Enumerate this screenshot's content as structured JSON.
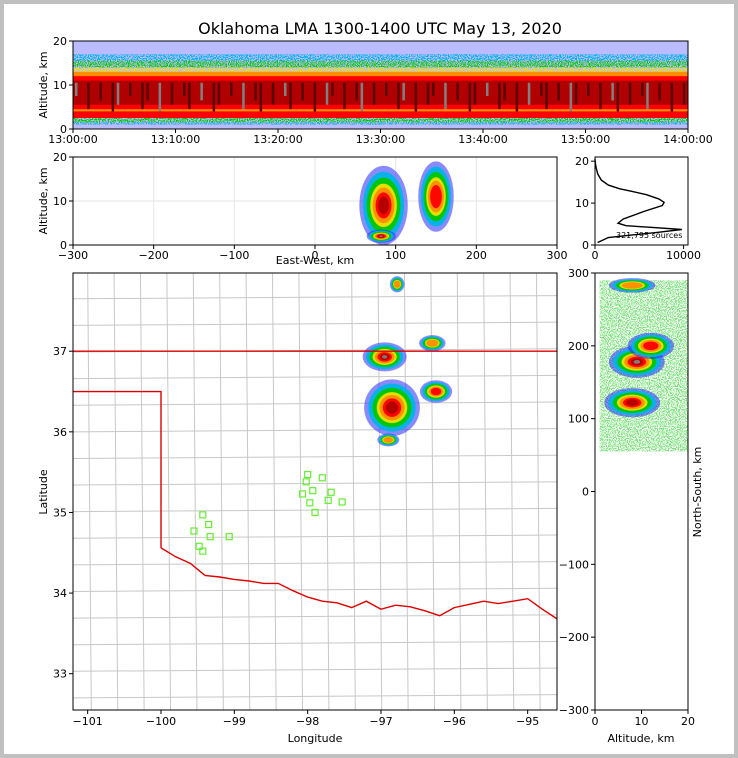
{
  "chart_data": [
    {
      "type": "heatmap",
      "panel": "altitude-vs-time",
      "title": "Oklahoma LMA 1300-1400 UTC May 13, 2020",
      "xlabel": "",
      "ylabel": "Altitude, km",
      "xticks": [
        "13:00:00",
        "13:10:00",
        "13:20:00",
        "13:30:00",
        "13:40:00",
        "13:50:00",
        "14:00:00"
      ],
      "yticks": [
        "0",
        "10",
        "20"
      ],
      "ylim": [
        0,
        20
      ],
      "density_band_km": [
        2,
        13
      ],
      "dense_core_km": [
        6,
        11
      ]
    },
    {
      "type": "heatmap",
      "panel": "altitude-vs-east-west",
      "xlabel": "East-West, km",
      "ylabel": "Altitude, km",
      "xticks": [
        "−300",
        "−200",
        "−100",
        "0",
        "100",
        "200",
        "300"
      ],
      "yticks": [
        "0",
        "10",
        "20"
      ],
      "xlim": [
        -300,
        300
      ],
      "ylim": [
        0,
        20
      ],
      "grid": true,
      "cells": [
        {
          "x": 85,
          "y": 9,
          "rx": 30,
          "ry": 9,
          "level": 3
        },
        {
          "x": 150,
          "y": 11,
          "rx": 22,
          "ry": 8,
          "level": 2
        },
        {
          "x": 82,
          "y": 2,
          "rx": 18,
          "ry": 1.5,
          "level": 4
        }
      ]
    },
    {
      "type": "line",
      "panel": "altitude-histogram",
      "xlabel": "",
      "xticks": [
        "0",
        "10000"
      ],
      "yticks": [
        "0",
        "10",
        "20"
      ],
      "xlim": [
        0,
        10500
      ],
      "ylim": [
        0,
        21
      ],
      "annotation": "321,795 sources",
      "series": [
        {
          "x": [
            0,
            40,
            120,
            300,
            700,
            1500,
            2800,
            4200,
            5800,
            7200,
            7800,
            7600,
            5500,
            3200,
            2600,
            3500,
            6500,
            9800,
            7000,
            1500,
            300
          ],
          "y": [
            20.5,
            19.5,
            18.5,
            17.0,
            15.5,
            14.3,
            13.4,
            12.8,
            12.0,
            11.0,
            10.2,
            9.4,
            8.0,
            6.2,
            5.2,
            4.6,
            4.2,
            3.7,
            3.0,
            1.8,
            0.6
          ]
        }
      ]
    },
    {
      "type": "heatmap",
      "panel": "plan-view",
      "xlabel": "Longitude",
      "ylabel": "Latitude",
      "xticks": [
        "−101",
        "−100",
        "−99",
        "−98",
        "−97",
        "−96",
        "−95"
      ],
      "yticks": [
        "33",
        "34",
        "35",
        "36",
        "37"
      ],
      "xlim": [
        -101.2,
        -94.6
      ],
      "ylim": [
        32.55,
        37.97
      ],
      "state_border_lat": 37.0,
      "panhandle_lat": 36.5,
      "panhandle_lon": -100.0,
      "red_river": [
        [
          -100.0,
          34.56
        ],
        [
          -99.8,
          34.45
        ],
        [
          -99.6,
          34.37
        ],
        [
          -99.4,
          34.22
        ],
        [
          -99.2,
          34.2
        ],
        [
          -99.0,
          34.17
        ],
        [
          -98.8,
          34.15
        ],
        [
          -98.6,
          34.12
        ],
        [
          -98.4,
          34.12
        ],
        [
          -98.2,
          34.03
        ],
        [
          -98.0,
          33.95
        ],
        [
          -97.8,
          33.9
        ],
        [
          -97.6,
          33.88
        ],
        [
          -97.4,
          33.82
        ],
        [
          -97.2,
          33.9
        ],
        [
          -97.0,
          33.8
        ],
        [
          -96.8,
          33.85
        ],
        [
          -96.6,
          33.83
        ],
        [
          -96.4,
          33.78
        ],
        [
          -96.2,
          33.72
        ],
        [
          -96.0,
          33.82
        ],
        [
          -95.8,
          33.86
        ],
        [
          -95.6,
          33.9
        ],
        [
          -95.4,
          33.87
        ],
        [
          -95.2,
          33.9
        ],
        [
          -95.0,
          33.93
        ],
        [
          -94.8,
          33.8
        ],
        [
          -94.6,
          33.68
        ]
      ],
      "stations": [
        [
          -99.43,
          34.97
        ],
        [
          -99.35,
          34.85
        ],
        [
          -99.55,
          34.77
        ],
        [
          -99.33,
          34.7
        ],
        [
          -99.48,
          34.58
        ],
        [
          -99.43,
          34.52
        ],
        [
          -99.07,
          34.7
        ],
        [
          -98.0,
          35.47
        ],
        [
          -98.02,
          35.38
        ],
        [
          -98.07,
          35.23
        ],
        [
          -97.93,
          35.27
        ],
        [
          -97.8,
          35.43
        ],
        [
          -97.68,
          35.25
        ],
        [
          -97.72,
          35.15
        ],
        [
          -97.53,
          35.13
        ],
        [
          -97.97,
          35.12
        ],
        [
          -97.9,
          35.0
        ]
      ],
      "cells": [
        {
          "lon": -96.95,
          "lat": 36.93,
          "rx": 0.3,
          "ry": 0.18,
          "level": 4
        },
        {
          "lon": -96.85,
          "lat": 36.3,
          "rx": 0.38,
          "ry": 0.35,
          "level": 3
        },
        {
          "lon": -96.25,
          "lat": 36.5,
          "rx": 0.22,
          "ry": 0.14,
          "level": 2
        },
        {
          "lon": -96.3,
          "lat": 37.1,
          "rx": 0.18,
          "ry": 0.1,
          "level": 1
        },
        {
          "lon": -96.78,
          "lat": 37.83,
          "rx": 0.1,
          "ry": 0.1,
          "level": 1
        },
        {
          "lon": -96.9,
          "lat": 35.9,
          "rx": 0.15,
          "ry": 0.08,
          "level": 1
        }
      ]
    },
    {
      "type": "heatmap",
      "panel": "north-south-vs-altitude",
      "xlabel": "Altitude, km",
      "ylabel": "North-South, km",
      "xticks": [
        "0",
        "10",
        "20"
      ],
      "yticks": [
        "−300",
        "−200",
        "−100",
        "0",
        "100",
        "200",
        "300"
      ],
      "xlim": [
        0,
        20
      ],
      "ylim": [
        -300,
        300
      ],
      "cells": [
        {
          "alt": 9,
          "ns": 178,
          "ra": 6,
          "rn": 22,
          "level": 4
        },
        {
          "alt": 8,
          "ns": 122,
          "ra": 6,
          "rn": 20,
          "level": 3
        },
        {
          "alt": 12,
          "ns": 200,
          "ra": 5,
          "rn": 18,
          "level": 2
        },
        {
          "alt": 8,
          "ns": 283,
          "ra": 5,
          "rn": 10,
          "level": 1
        }
      ]
    }
  ]
}
